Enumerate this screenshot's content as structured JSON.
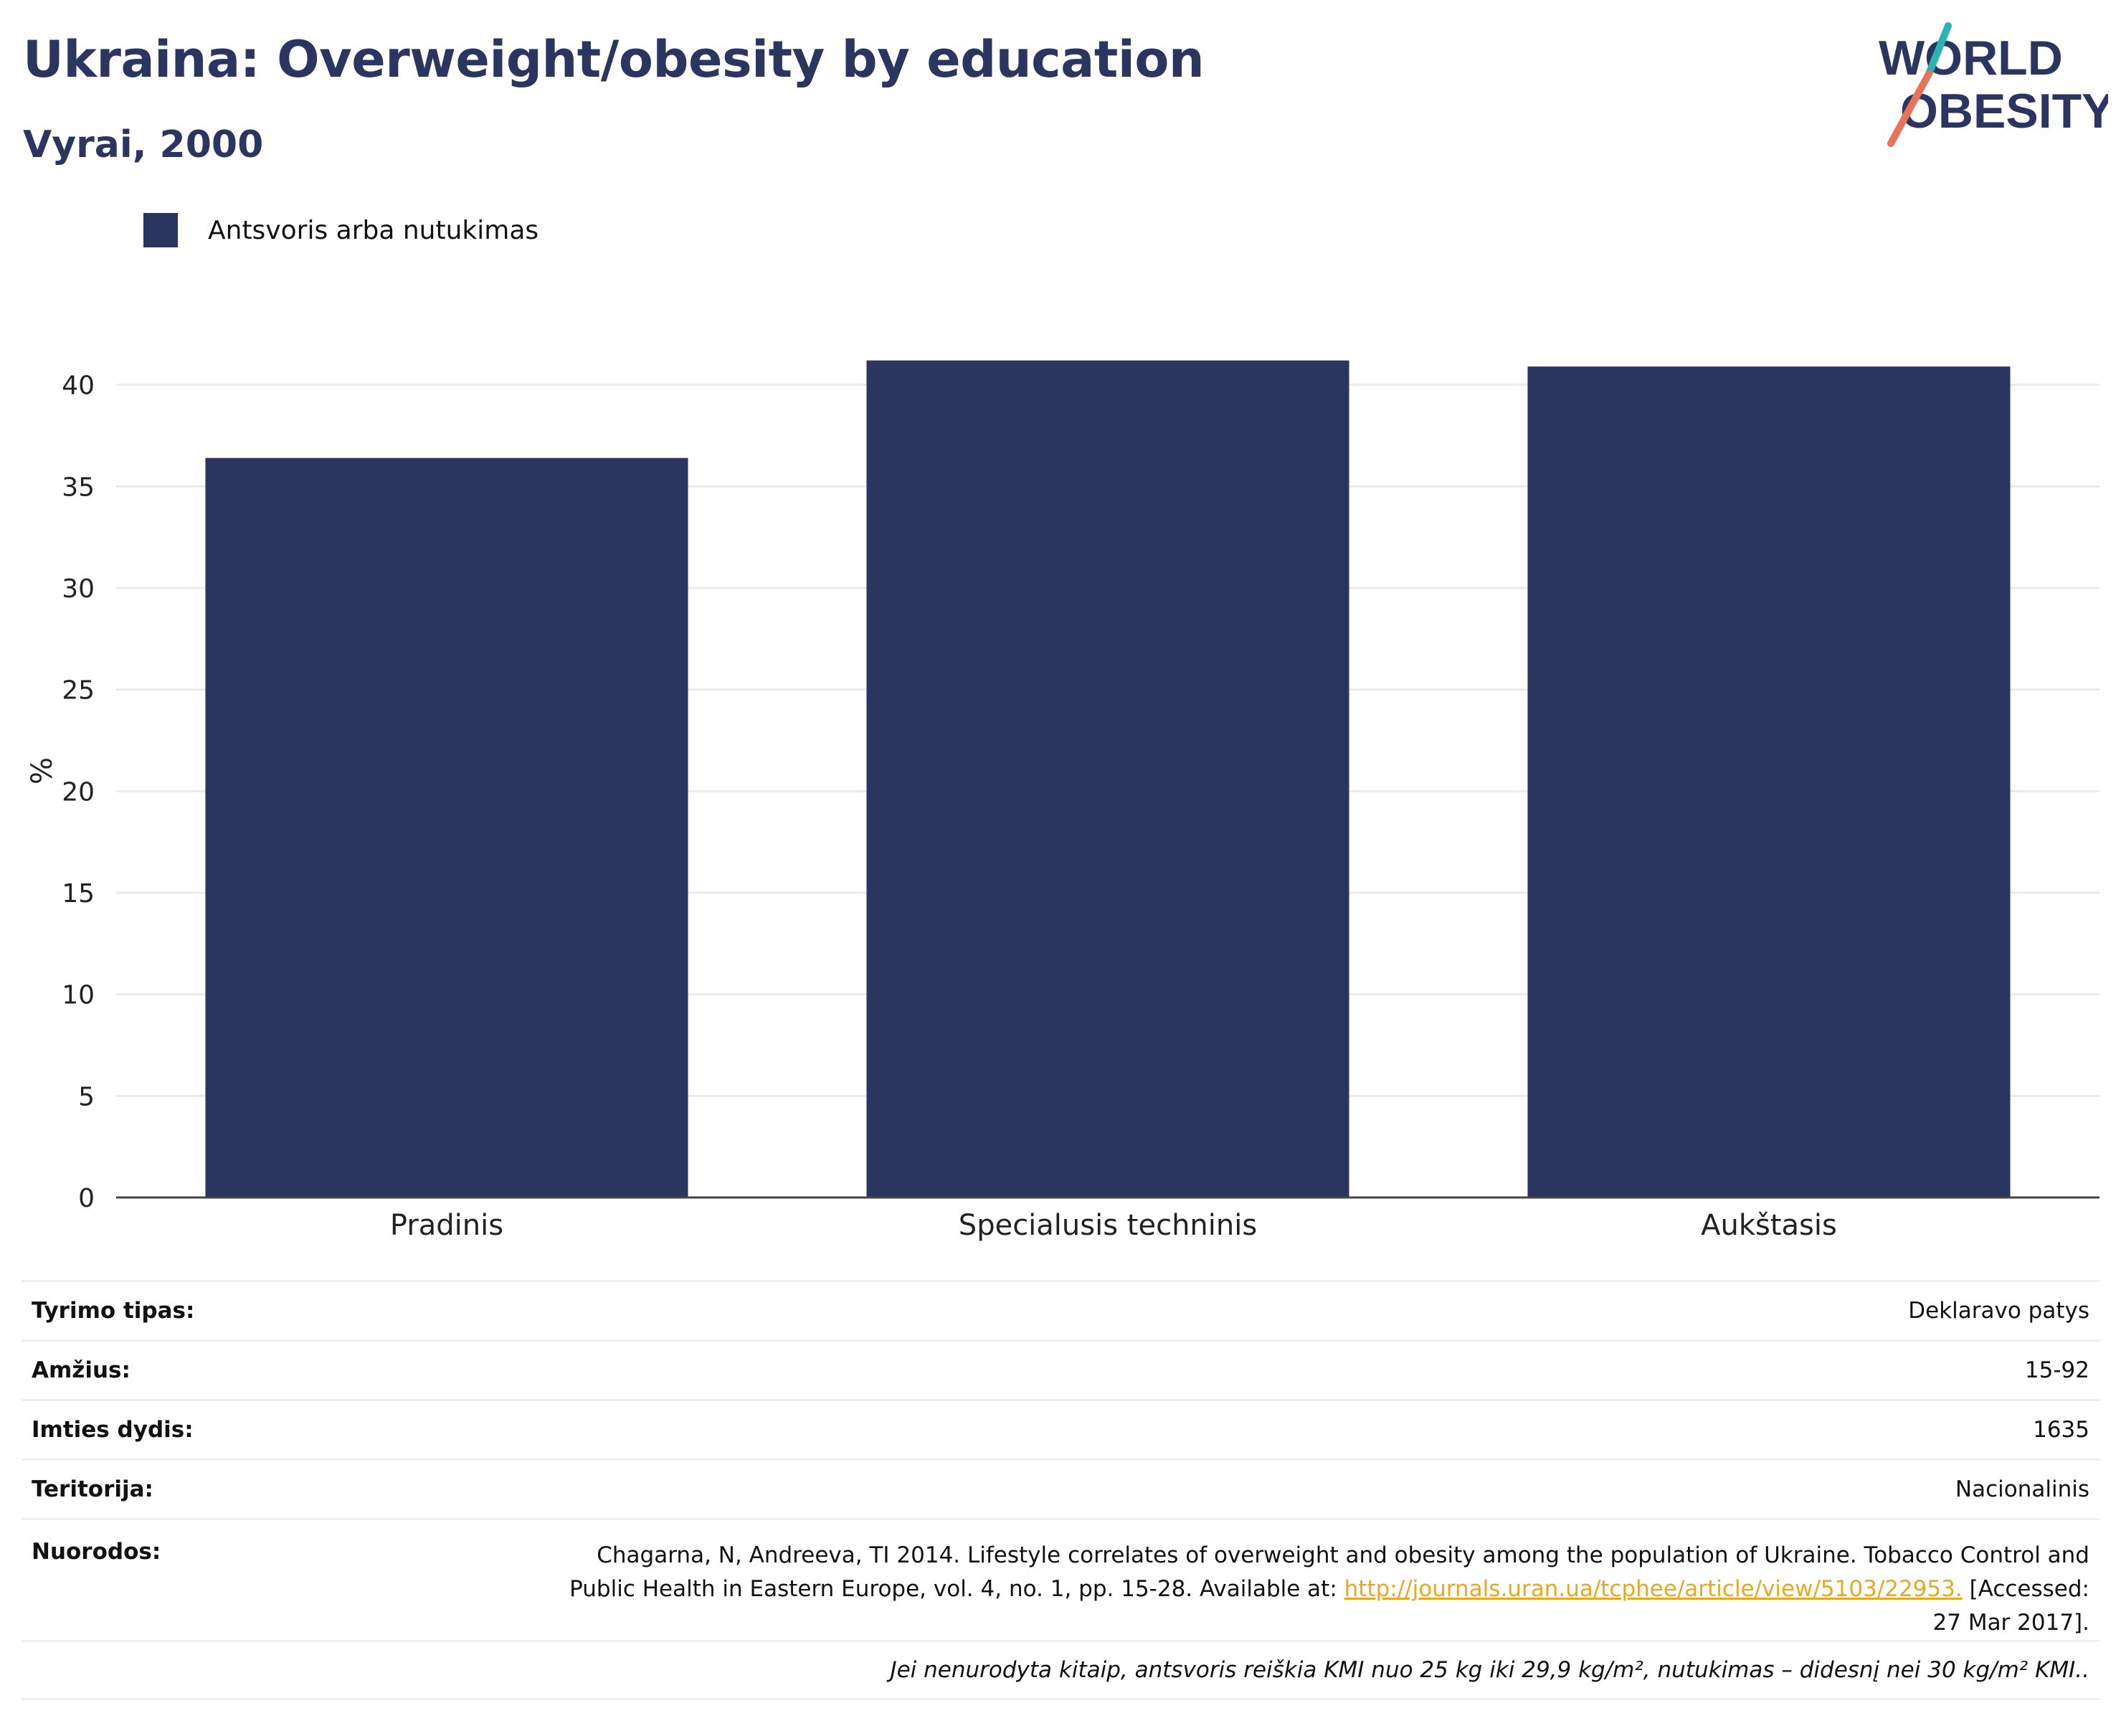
{
  "title": "Ukraina: Overweight/obesity by education",
  "subtitle": "Vyrai, 2000",
  "logo": {
    "line1": "WORLD",
    "line2": "OBESITY",
    "colors": {
      "text": "#2a3560",
      "teal": "#2ab3b1",
      "coral": "#e8735a"
    }
  },
  "legend": {
    "label": "Antsvoris arba nutukimas",
    "color": "#2a3560"
  },
  "chart_data": {
    "type": "bar",
    "categories": [
      "Pradinis",
      "Specialusis techninis",
      "Aukštasis"
    ],
    "series": [
      {
        "name": "Antsvoris arba nutukimas",
        "values": [
          36.4,
          41.2,
          40.9
        ],
        "color": "#2a3560"
      }
    ],
    "ylabel": "%",
    "xlabel": "",
    "ylim": [
      0,
      42
    ],
    "yticks": [
      0,
      5,
      10,
      15,
      20,
      25,
      30,
      35,
      40
    ],
    "grid": true,
    "legend_position": "top-left"
  },
  "meta": {
    "survey_type": {
      "label": "Tyrimo tipas:",
      "value": "Deklaravo patys"
    },
    "age": {
      "label": "Amžius:",
      "value": "15-92"
    },
    "sample_size": {
      "label": "Imties dydis:",
      "value": "1635"
    },
    "territory": {
      "label": "Teritorija:",
      "value": "Nacionalinis"
    },
    "references": {
      "label": "Nuorodos:",
      "text_before": "Chagarna, N, Andreeva, TI 2014. Lifestyle correlates of overweight and obesity among the population of Ukraine. Tobacco Control and Public Health in Eastern Europe, vol. 4, no. 1, pp. 15-28. Available at: ",
      "link": "http://journals.uran.ua/tcphee/article/view/5103/22953.",
      "text_after": " [Accessed: 27 Mar 2017]."
    },
    "note": "Jei nenurodyta kitaip, antsvoris reiškia KMI nuo 25 kg iki 29,9 kg/m², nutukimas – didesnį nei 30 kg/m² KMI.."
  }
}
